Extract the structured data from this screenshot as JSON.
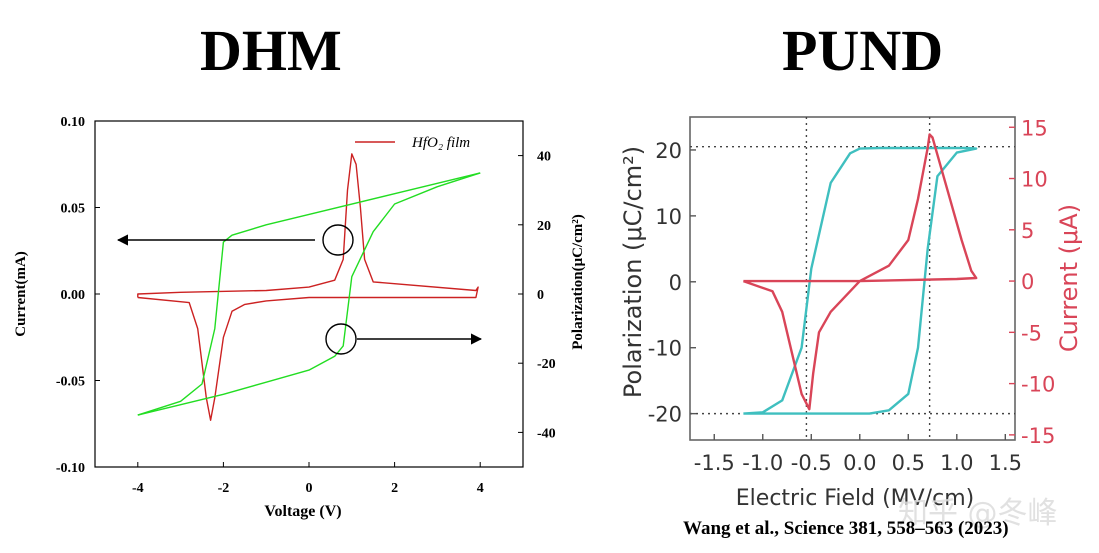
{
  "titles": {
    "left": "DHM",
    "right": "PUND"
  },
  "citation": "Wang et al., Science 381, 558–563 (2023)",
  "watermark": "知乎 @冬峰",
  "colors": {
    "current": "#cc2222",
    "polarization": "#22dd22",
    "pund_pol": "#3fbfbf",
    "pund_cur": "#d94558",
    "axis": "#000000"
  },
  "chart_data": [
    {
      "type": "line",
      "name": "DHM",
      "xlabel": "Voltage (V)",
      "ylabel": "Current(mA)",
      "y2label": "Polarization(μC/cm²)",
      "xlim": [
        -5,
        5
      ],
      "ylim": [
        -0.1,
        0.1
      ],
      "y2lim": [
        -50,
        50
      ],
      "xticks": [
        "-4",
        "-2",
        "0",
        "2",
        "4"
      ],
      "yticks": [
        "-0.10",
        "-0.05",
        "0.00",
        "0.05",
        "0.10"
      ],
      "y2ticks": [
        "-40",
        "-20",
        "0",
        "20",
        "40"
      ],
      "legend": "HfO₂ film",
      "series": [
        {
          "name": "HfO2 film current",
          "axis": "left",
          "x": [
            -4.0,
            -2.8,
            -2.6,
            -2.4,
            -2.3,
            -2.2,
            -2.0,
            -1.8,
            -1.5,
            -1.0,
            0.0,
            3.9,
            3.95,
            3.9,
            1.5,
            1.3,
            1.2,
            1.1,
            1.0,
            0.9,
            0.8,
            0.6,
            0.0,
            -1.0,
            -3.0,
            -4.0,
            -4.0
          ],
          "y": [
            -0.002,
            -0.005,
            -0.02,
            -0.06,
            -0.073,
            -0.06,
            -0.025,
            -0.01,
            -0.006,
            -0.004,
            -0.002,
            -0.002,
            0.004,
            0.002,
            0.007,
            0.02,
            0.05,
            0.075,
            0.081,
            0.06,
            0.02,
            0.008,
            0.004,
            0.002,
            0.001,
            0.0,
            -0.002
          ]
        },
        {
          "name": "Polarization upper branch",
          "axis": "right",
          "x": [
            -4.0,
            -3.0,
            -2.5,
            -2.2,
            -2.0,
            -1.8,
            -1.0,
            0.0,
            2.0,
            4.0
          ],
          "y": [
            -35,
            -31,
            -26,
            -10,
            15,
            17,
            20,
            23,
            29,
            35
          ]
        },
        {
          "name": "Polarization lower branch",
          "axis": "right",
          "x": [
            4.0,
            3.0,
            2.0,
            1.5,
            1.0,
            0.8,
            0.6,
            0.0,
            -2.0,
            -4.0
          ],
          "y": [
            35,
            31,
            26,
            18,
            5,
            -15,
            -18,
            -22,
            -29,
            -35
          ]
        }
      ],
      "annotations": [
        "left arrow points from peak marker to Current axis",
        "right arrow points from loop marker to Polarization axis"
      ]
    },
    {
      "type": "line",
      "name": "PUND",
      "xlabel": "Electric Field (MV/cm)",
      "ylabel": "Polarization (μC/cm²)",
      "y2label": "Current (μA)",
      "xlim": [
        -1.75,
        1.6
      ],
      "ylim": [
        -24,
        25
      ],
      "y2lim": [
        -15.5,
        16
      ],
      "xticks": [
        "-1.5",
        "-1.0",
        "-0.5",
        "0.0",
        "0.5",
        "1.0",
        "1.5"
      ],
      "yticks": [
        "20",
        "10",
        "0",
        "-10",
        "-20"
      ],
      "y2ticks": [
        "15",
        "10",
        "5",
        "0",
        "-5",
        "-10",
        "-15"
      ],
      "guides": {
        "x": [
          -0.55,
          0.72
        ],
        "y": [
          20.5,
          -20
        ]
      },
      "series": [
        {
          "name": "Polarization",
          "axis": "left",
          "x": [
            -1.2,
            -1.0,
            -0.8,
            -0.6,
            -0.5,
            -0.3,
            -0.1,
            0.0,
            0.2,
            0.6,
            0.8,
            1.0,
            1.1,
            1.2,
            1.0,
            0.8,
            0.7,
            0.6,
            0.5,
            0.3,
            0.1,
            0.0,
            -0.2,
            -0.6,
            -0.8,
            -1.0,
            -1.2
          ],
          "y": [
            -20,
            -19.8,
            -18,
            -10,
            2,
            15,
            19.5,
            20.2,
            20.3,
            20.3,
            20.3,
            20.3,
            20.3,
            20.2,
            19.6,
            16,
            5,
            -10,
            -17,
            -19.5,
            -20,
            -20,
            -20,
            -20,
            -20,
            -20,
            -20
          ]
        },
        {
          "name": "Current",
          "axis": "right",
          "x": [
            -1.2,
            -0.9,
            -0.8,
            -0.7,
            -0.6,
            -0.52,
            -0.48,
            -0.42,
            -0.3,
            -0.1,
            0.0,
            0.3,
            0.5,
            0.6,
            0.7,
            0.72,
            0.75,
            0.9,
            1.05,
            1.15,
            1.2,
            1.0,
            0.0,
            -1.2
          ],
          "y": [
            0,
            -1,
            -3,
            -7,
            -11,
            -12.5,
            -9,
            -5,
            -3,
            -1,
            0,
            1.5,
            4,
            8,
            13,
            14.3,
            14,
            9,
            4,
            1,
            0.3,
            0.2,
            0,
            0
          ]
        }
      ]
    }
  ]
}
